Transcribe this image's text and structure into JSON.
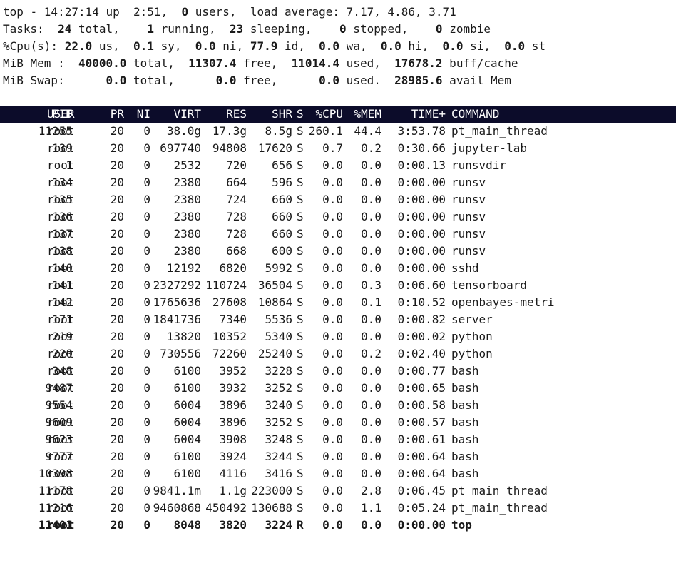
{
  "summary": {
    "uptime": {
      "prefix": "top - ",
      "time": "14:27:14",
      "up_label": " up ",
      "up": " 2:51",
      "users_sep": ",  ",
      "users": "0",
      "users_label": " users,  ",
      "load_label": "load average: ",
      "load1": "7.17",
      "load5": "4.86",
      "load15": "3.71"
    },
    "tasks": {
      "label": "Tasks: ",
      "total": "24",
      "total_label": " total,",
      "running": "1",
      "running_label": " running,",
      "sleeping": "23",
      "sleeping_label": " sleeping,",
      "stopped": "0",
      "stopped_label": " stopped,",
      "zombie": "0",
      "zombie_label": " zombie"
    },
    "cpu": {
      "label": "%Cpu(s): ",
      "us": "22.0",
      "us_label": " us,",
      "sy": "0.1",
      "sy_label": " sy,",
      "ni": "0.0",
      "ni_label": " ni,",
      "id": "77.9",
      "id_label": " id,",
      "wa": "0.0",
      "wa_label": " wa,",
      "hi": "0.0",
      "hi_label": " hi,",
      "si": "0.0",
      "si_label": " si,",
      "st": "0.0",
      "st_label": " st"
    },
    "mem": {
      "label": "MiB Mem :",
      "total": "40000.0",
      "total_label": " total,",
      "free": "11307.4",
      "free_label": " free,",
      "used": "11014.4",
      "used_label": " used,",
      "buff": "17678.2",
      "buff_label": " buff/cache"
    },
    "swap": {
      "label": "MiB Swap:",
      "total": "0.0",
      "total_label": " total,",
      "free": "0.0",
      "free_label": " free,",
      "used": "0.0",
      "used_label": " used.",
      "avail": "28985.6",
      "avail_label": " avail Mem"
    }
  },
  "columns": [
    "PID",
    "USER",
    "PR",
    "NI",
    "VIRT",
    "RES",
    "SHR",
    "S",
    "%CPU",
    "%MEM",
    "TIME+",
    "COMMAND"
  ],
  "processes": [
    {
      "pid": "11255",
      "user": "root",
      "pr": "20",
      "ni": "0",
      "virt": "38.0g",
      "res": "17.3g",
      "shr": "8.5g",
      "s": "S",
      "cpu": "260.1",
      "mem": "44.4",
      "time": "3:53.78",
      "command": "pt_main_thread"
    },
    {
      "pid": "139",
      "user": "root",
      "pr": "20",
      "ni": "0",
      "virt": "697740",
      "res": "94808",
      "shr": "17620",
      "s": "S",
      "cpu": "0.7",
      "mem": "0.2",
      "time": "0:30.66",
      "command": "jupyter-lab"
    },
    {
      "pid": "1",
      "user": "root",
      "pr": "20",
      "ni": "0",
      "virt": "2532",
      "res": "720",
      "shr": "656",
      "s": "S",
      "cpu": "0.0",
      "mem": "0.0",
      "time": "0:00.13",
      "command": "runsvdir"
    },
    {
      "pid": "134",
      "user": "root",
      "pr": "20",
      "ni": "0",
      "virt": "2380",
      "res": "664",
      "shr": "596",
      "s": "S",
      "cpu": "0.0",
      "mem": "0.0",
      "time": "0:00.00",
      "command": "runsv"
    },
    {
      "pid": "135",
      "user": "root",
      "pr": "20",
      "ni": "0",
      "virt": "2380",
      "res": "724",
      "shr": "660",
      "s": "S",
      "cpu": "0.0",
      "mem": "0.0",
      "time": "0:00.00",
      "command": "runsv"
    },
    {
      "pid": "136",
      "user": "root",
      "pr": "20",
      "ni": "0",
      "virt": "2380",
      "res": "728",
      "shr": "660",
      "s": "S",
      "cpu": "0.0",
      "mem": "0.0",
      "time": "0:00.00",
      "command": "runsv"
    },
    {
      "pid": "137",
      "user": "root",
      "pr": "20",
      "ni": "0",
      "virt": "2380",
      "res": "728",
      "shr": "660",
      "s": "S",
      "cpu": "0.0",
      "mem": "0.0",
      "time": "0:00.00",
      "command": "runsv"
    },
    {
      "pid": "138",
      "user": "root",
      "pr": "20",
      "ni": "0",
      "virt": "2380",
      "res": "668",
      "shr": "600",
      "s": "S",
      "cpu": "0.0",
      "mem": "0.0",
      "time": "0:00.00",
      "command": "runsv"
    },
    {
      "pid": "140",
      "user": "root",
      "pr": "20",
      "ni": "0",
      "virt": "12192",
      "res": "6820",
      "shr": "5992",
      "s": "S",
      "cpu": "0.0",
      "mem": "0.0",
      "time": "0:00.00",
      "command": "sshd"
    },
    {
      "pid": "141",
      "user": "root",
      "pr": "20",
      "ni": "0",
      "virt": "2327292",
      "res": "110724",
      "shr": "36504",
      "s": "S",
      "cpu": "0.0",
      "mem": "0.3",
      "time": "0:06.60",
      "command": "tensorboard"
    },
    {
      "pid": "142",
      "user": "root",
      "pr": "20",
      "ni": "0",
      "virt": "1765636",
      "res": "27608",
      "shr": "10864",
      "s": "S",
      "cpu": "0.0",
      "mem": "0.1",
      "time": "0:10.52",
      "command": "openbayes-metri"
    },
    {
      "pid": "171",
      "user": "root",
      "pr": "20",
      "ni": "0",
      "virt": "1841736",
      "res": "7340",
      "shr": "5536",
      "s": "S",
      "cpu": "0.0",
      "mem": "0.0",
      "time": "0:00.82",
      "command": "server"
    },
    {
      "pid": "219",
      "user": "root",
      "pr": "20",
      "ni": "0",
      "virt": "13820",
      "res": "10352",
      "shr": "5340",
      "s": "S",
      "cpu": "0.0",
      "mem": "0.0",
      "time": "0:00.02",
      "command": "python"
    },
    {
      "pid": "220",
      "user": "root",
      "pr": "20",
      "ni": "0",
      "virt": "730556",
      "res": "72260",
      "shr": "25240",
      "s": "S",
      "cpu": "0.0",
      "mem": "0.2",
      "time": "0:02.40",
      "command": "python"
    },
    {
      "pid": "348",
      "user": "root",
      "pr": "20",
      "ni": "0",
      "virt": "6100",
      "res": "3952",
      "shr": "3228",
      "s": "S",
      "cpu": "0.0",
      "mem": "0.0",
      "time": "0:00.77",
      "command": "bash"
    },
    {
      "pid": "9487",
      "user": "root",
      "pr": "20",
      "ni": "0",
      "virt": "6100",
      "res": "3932",
      "shr": "3252",
      "s": "S",
      "cpu": "0.0",
      "mem": "0.0",
      "time": "0:00.65",
      "command": "bash"
    },
    {
      "pid": "9554",
      "user": "root",
      "pr": "20",
      "ni": "0",
      "virt": "6004",
      "res": "3896",
      "shr": "3240",
      "s": "S",
      "cpu": "0.0",
      "mem": "0.0",
      "time": "0:00.58",
      "command": "bash"
    },
    {
      "pid": "9609",
      "user": "root",
      "pr": "20",
      "ni": "0",
      "virt": "6004",
      "res": "3896",
      "shr": "3252",
      "s": "S",
      "cpu": "0.0",
      "mem": "0.0",
      "time": "0:00.57",
      "command": "bash"
    },
    {
      "pid": "9623",
      "user": "root",
      "pr": "20",
      "ni": "0",
      "virt": "6004",
      "res": "3908",
      "shr": "3248",
      "s": "S",
      "cpu": "0.0",
      "mem": "0.0",
      "time": "0:00.61",
      "command": "bash"
    },
    {
      "pid": "9777",
      "user": "root",
      "pr": "20",
      "ni": "0",
      "virt": "6100",
      "res": "3924",
      "shr": "3244",
      "s": "S",
      "cpu": "0.0",
      "mem": "0.0",
      "time": "0:00.64",
      "command": "bash"
    },
    {
      "pid": "10398",
      "user": "root",
      "pr": "20",
      "ni": "0",
      "virt": "6100",
      "res": "4116",
      "shr": "3416",
      "s": "S",
      "cpu": "0.0",
      "mem": "0.0",
      "time": "0:00.64",
      "command": "bash"
    },
    {
      "pid": "11178",
      "user": "root",
      "pr": "20",
      "ni": "0",
      "virt": "9841.1m",
      "res": "1.1g",
      "shr": "223000",
      "s": "S",
      "cpu": "0.0",
      "mem": "2.8",
      "time": "0:06.45",
      "command": "pt_main_thread"
    },
    {
      "pid": "11216",
      "user": "root",
      "pr": "20",
      "ni": "0",
      "virt": "9460868",
      "res": "450492",
      "shr": "130688",
      "s": "S",
      "cpu": "0.0",
      "mem": "1.1",
      "time": "0:05.24",
      "command": "pt_main_thread"
    },
    {
      "pid": "11401",
      "user": "root",
      "pr": "20",
      "ni": "0",
      "virt": "8048",
      "res": "3820",
      "shr": "3224",
      "s": "R",
      "cpu": "0.0",
      "mem": "0.0",
      "time": "0:00.00",
      "command": "top"
    }
  ],
  "colors": {
    "header_bg": "#0c0c2a",
    "header_fg": "#ffffff",
    "text": "#1a1a1a",
    "background": "#ffffff"
  }
}
